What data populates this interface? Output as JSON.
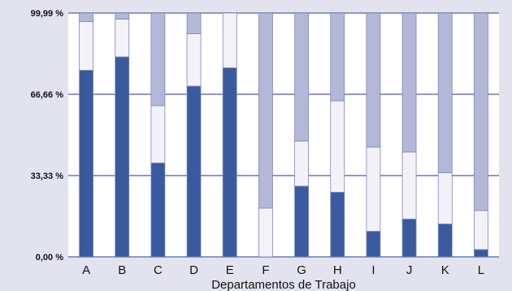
{
  "chart_data": {
    "type": "bar",
    "stacked": true,
    "title": "",
    "xlabel": "Departamentos de Trabajo",
    "ylabel": "",
    "ylim": [
      0,
      99.99
    ],
    "yticks": [
      {
        "value": 0,
        "label": "0,00 %"
      },
      {
        "value": 33.33,
        "label": "33,33 %"
      },
      {
        "value": 66.66,
        "label": "66,66 %"
      },
      {
        "value": 99.99,
        "label": "99,99 %"
      }
    ],
    "grid": true,
    "categories": [
      "A",
      "B",
      "C",
      "D",
      "E",
      "F",
      "G",
      "H",
      "I",
      "J",
      "K",
      "L"
    ],
    "series": [
      {
        "color": "#3a5a9e",
        "values": [
          76.5,
          82,
          38.5,
          70,
          77.5,
          0,
          29,
          26.5,
          10.5,
          15.5,
          13.5,
          3
        ]
      },
      {
        "color": "#f2f2f8",
        "values": [
          20,
          15.5,
          23.5,
          21.5,
          22.5,
          20,
          18.5,
          37.5,
          34.5,
          27.5,
          21,
          16
        ]
      },
      {
        "color": "#b3b8d8",
        "values": [
          3.5,
          2.5,
          38,
          8.5,
          0,
          80,
          52.5,
          36,
          55,
          57,
          65.5,
          81
        ]
      }
    ]
  }
}
